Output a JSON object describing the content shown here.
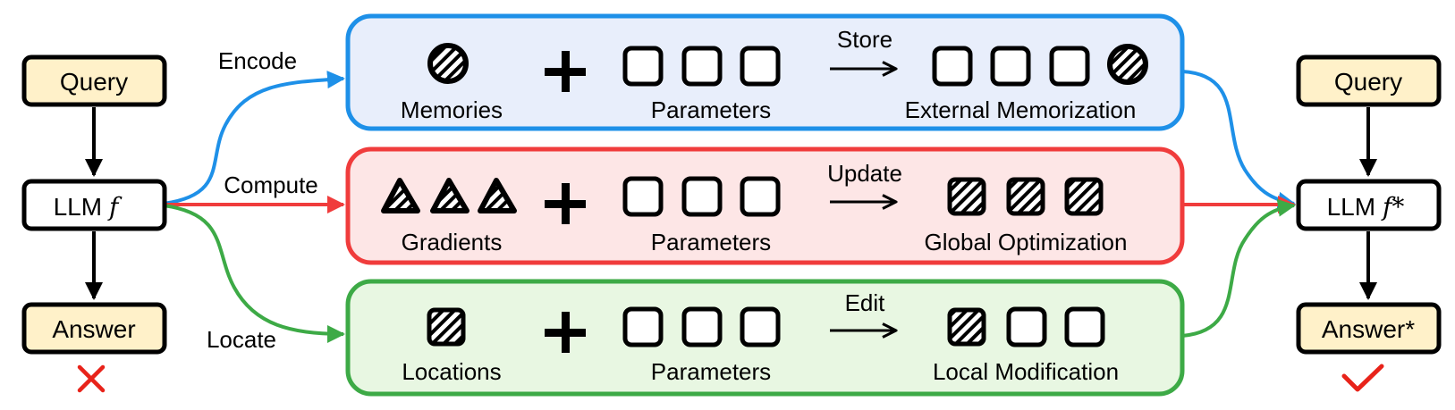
{
  "left": {
    "query": "Query",
    "llm": "LLM",
    "llm_symbol": "f",
    "answer": "Answer",
    "verdict_icon": "red-cross-icon"
  },
  "right": {
    "query": "Query",
    "llm": "LLM",
    "llm_symbol": "f*",
    "answer": "Answer*",
    "verdict_icon": "red-checkmark-icon"
  },
  "edges": {
    "encode": "Encode",
    "compute": "Compute",
    "locate": "Locate"
  },
  "panels": {
    "external": {
      "source_label": "Memories",
      "params_label": "Parameters",
      "action": "Store",
      "result_label": "External Memorization",
      "color": "#1E90E8",
      "fill": "#E8EEFB"
    },
    "global": {
      "source_label": "Gradients",
      "params_label": "Parameters",
      "action": "Update",
      "result_label": "Global Optimization",
      "color": "#F03C3C",
      "fill": "#FDE6E6"
    },
    "local": {
      "source_label": "Locations",
      "params_label": "Parameters",
      "action": "Edit",
      "result_label": "Local Modification",
      "color": "#3DAA46",
      "fill": "#E8F7E2"
    }
  },
  "node_fill": "#FFF1C9"
}
